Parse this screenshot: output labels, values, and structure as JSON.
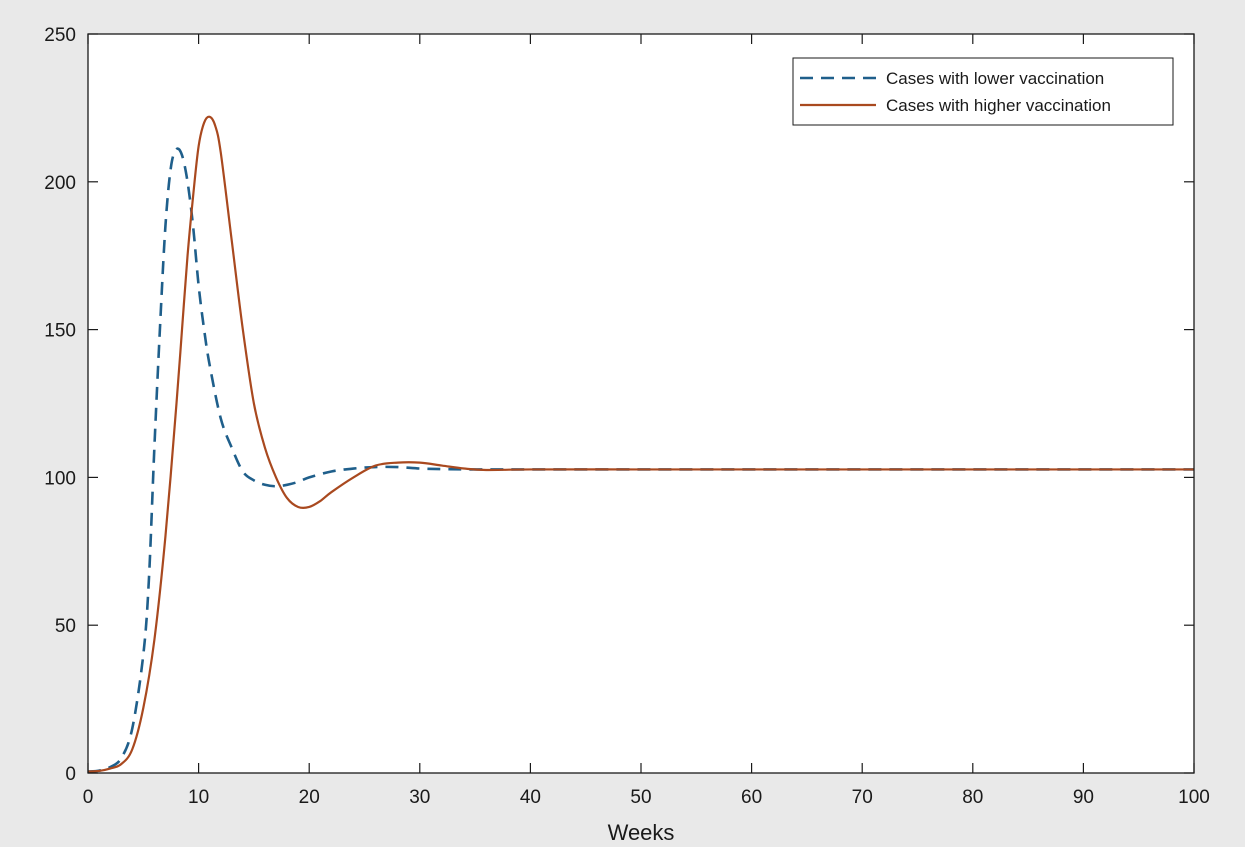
{
  "chart_data": {
    "type": "line",
    "title": "",
    "xlabel": "Weeks",
    "ylabel": "",
    "xlim": [
      0,
      100
    ],
    "ylim": [
      0,
      250
    ],
    "xticks": [
      0,
      10,
      20,
      30,
      40,
      50,
      60,
      70,
      80,
      90,
      100
    ],
    "yticks": [
      0,
      50,
      100,
      150,
      200,
      250
    ],
    "grid": false,
    "legend_position": "top-right",
    "series": [
      {
        "name": "Cases with lower vaccination",
        "color": "#1f5f8b",
        "style": "dashed",
        "x": [
          0,
          1,
          2,
          3,
          4,
          5,
          5.5,
          6,
          6.5,
          7,
          7.5,
          8,
          8.5,
          9,
          9.5,
          10,
          10.5,
          11,
          12,
          13,
          14,
          15,
          16,
          17,
          18,
          19,
          20,
          22,
          24,
          26,
          28,
          30,
          32,
          35,
          40,
          50,
          60,
          70,
          80,
          90,
          100
        ],
        "y": [
          0.5,
          0.8,
          2,
          5,
          15,
          40,
          65,
          110,
          150,
          185,
          205,
          211,
          209,
          200,
          185,
          165,
          150,
          138,
          120,
          110,
          102,
          99,
          97.5,
          97,
          97.5,
          98.5,
          100,
          102,
          103,
          103.5,
          103.5,
          103,
          102.8,
          102.7,
          102.7,
          102.7,
          102.7,
          102.7,
          102.7,
          102.7,
          102.7
        ]
      },
      {
        "name": "Cases with higher vaccination",
        "color": "#a9491f",
        "style": "solid",
        "x": [
          0,
          1,
          2,
          3,
          4,
          5,
          6,
          7,
          8,
          8.5,
          9,
          9.5,
          10,
          10.5,
          11,
          11.5,
          12,
          13,
          14,
          15,
          16,
          17,
          18,
          19,
          20,
          21,
          22,
          24,
          26,
          28,
          30,
          32,
          34,
          36,
          40,
          50,
          60,
          70,
          80,
          90,
          100
        ],
        "y": [
          0.5,
          0.7,
          1.5,
          3,
          8,
          22,
          45,
          80,
          125,
          150,
          175,
          195,
          212,
          220,
          222,
          219,
          210,
          180,
          150,
          125,
          110,
          100,
          93,
          90,
          90,
          92,
          95,
          100,
          104,
          105,
          105,
          104,
          103,
          102.5,
          102.7,
          102.7,
          102.7,
          102.7,
          102.7,
          102.7,
          102.7
        ]
      }
    ]
  }
}
